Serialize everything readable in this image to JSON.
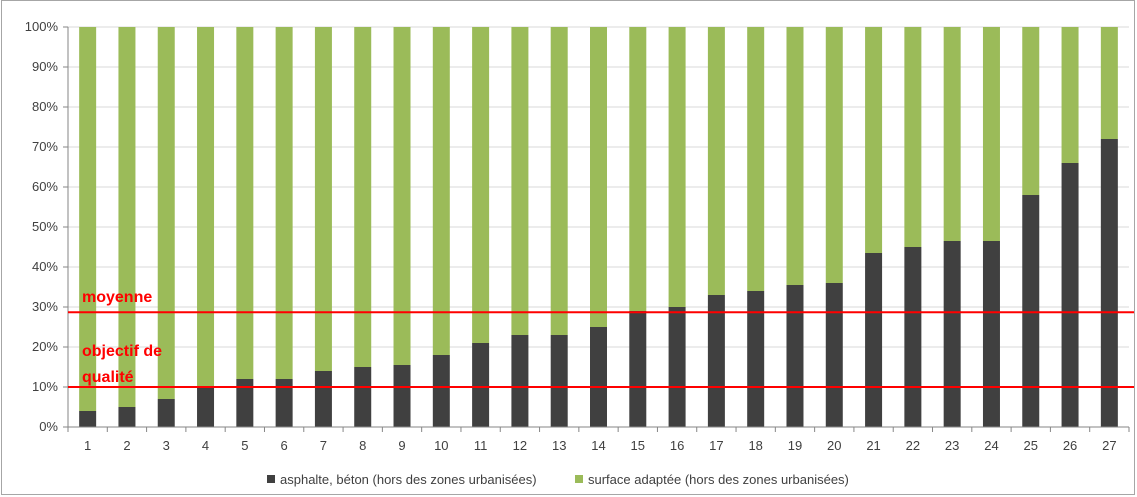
{
  "chart_data": {
    "type": "bar",
    "stacked": true,
    "percent_stacked": true,
    "categories": [
      "1",
      "2",
      "3",
      "4",
      "5",
      "6",
      "7",
      "8",
      "9",
      "10",
      "11",
      "12",
      "13",
      "14",
      "15",
      "16",
      "17",
      "18",
      "19",
      "20",
      "21",
      "22",
      "23",
      "24",
      "25",
      "26",
      "27"
    ],
    "series": [
      {
        "name": "asphalte, béton (hors des zones urbanisées)",
        "color": "#404040",
        "values": [
          4,
          5,
          7,
          10,
          12,
          12,
          14,
          15,
          15.5,
          18,
          21,
          23,
          23,
          25,
          29,
          30,
          33,
          34,
          35.5,
          36,
          43.5,
          45,
          46.5,
          46.5,
          58,
          66,
          72
        ]
      },
      {
        "name": "surface adaptée (hors des zones urbanisées)",
        "color": "#9bbb59",
        "values": [
          96,
          95,
          93,
          90,
          88,
          88,
          86,
          85,
          84.5,
          82,
          79,
          77,
          77,
          75,
          71,
          70,
          67,
          66,
          64.5,
          64,
          56.5,
          55,
          53.5,
          53.5,
          42,
          34,
          28
        ]
      }
    ],
    "y_ticks": [
      "0%",
      "10%",
      "20%",
      "30%",
      "40%",
      "50%",
      "60%",
      "70%",
      "80%",
      "90%",
      "100%"
    ],
    "ylim": [
      0,
      100
    ],
    "grid": true,
    "legend_position": "bottom",
    "reference_lines": [
      {
        "label": "moyenne",
        "value": 28.7,
        "color": "#ff0000"
      },
      {
        "label": "objectif de qualité",
        "label_lines": [
          "objectif de",
          "qualité"
        ],
        "value": 10,
        "color": "#ff0000"
      }
    ],
    "title": "",
    "xlabel": "",
    "ylabel": ""
  }
}
